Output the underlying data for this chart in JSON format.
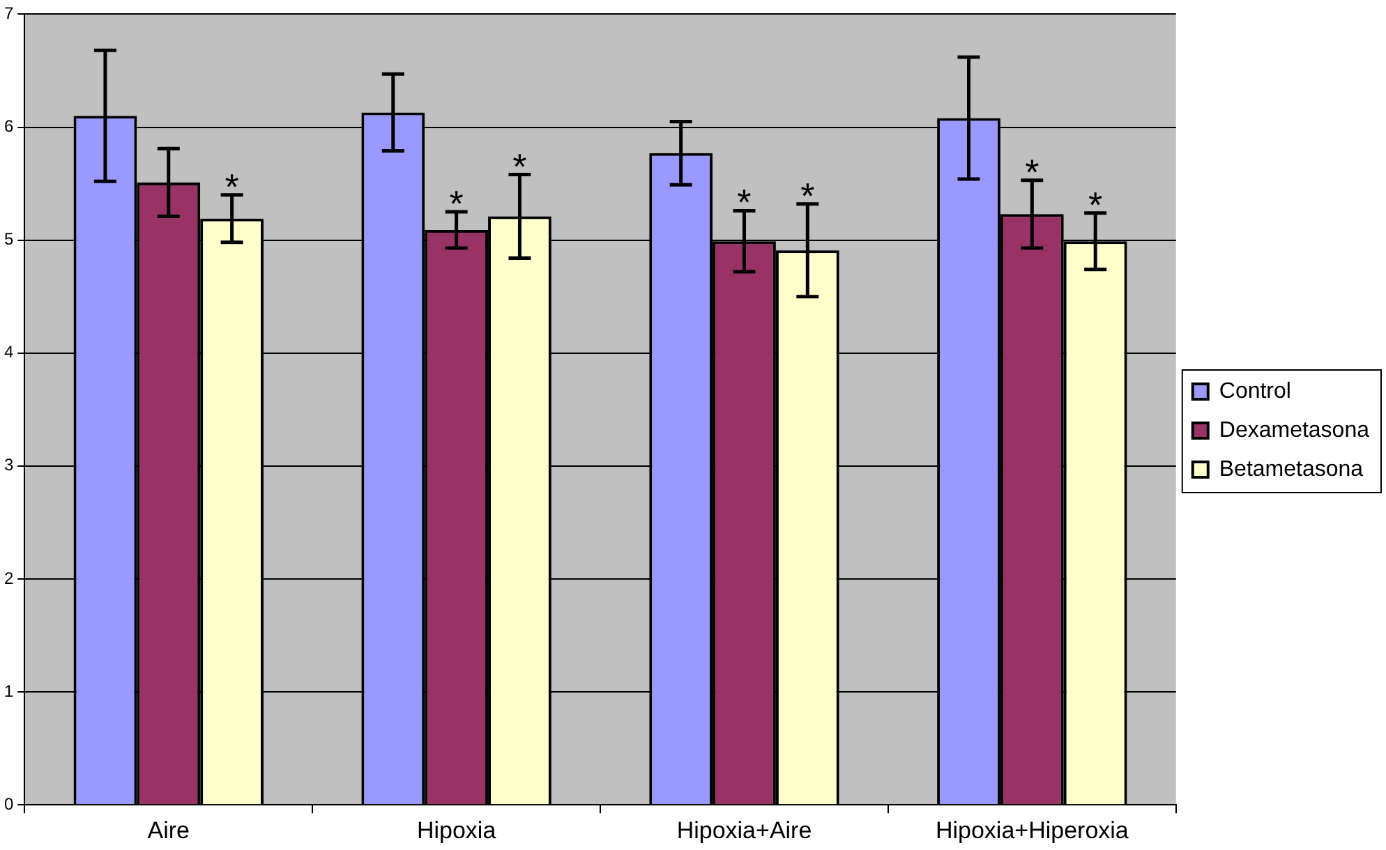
{
  "chart_data": {
    "type": "bar",
    "categories": [
      "Aire",
      "Hipoxia",
      "Hipoxia+Aire",
      "Hipoxia+Hiperoxia"
    ],
    "series": [
      {
        "name": "Control",
        "color": "#9999ff",
        "values": [
          6.1,
          6.13,
          5.77,
          6.08
        ],
        "errors": [
          0.58,
          0.34,
          0.28,
          0.54
        ]
      },
      {
        "name": "Dexametasona",
        "color": "#993366",
        "values": [
          5.51,
          5.09,
          4.99,
          5.23
        ],
        "errors": [
          0.3,
          0.16,
          0.27,
          0.3
        ],
        "value_labels": [
          null,
          "*",
          "*",
          "*"
        ]
      },
      {
        "name": "Betametasona",
        "color": "#ffffcc",
        "values": [
          5.19,
          5.21,
          4.91,
          4.99
        ],
        "errors": [
          0.21,
          0.37,
          0.41,
          0.25
        ],
        "value_labels": [
          "*",
          "*",
          "*",
          "*"
        ]
      }
    ],
    "ylim": [
      0,
      7
    ],
    "yticks": [
      0,
      1,
      2,
      3,
      4,
      5,
      6,
      7
    ],
    "grid": "y",
    "legend": "right"
  }
}
